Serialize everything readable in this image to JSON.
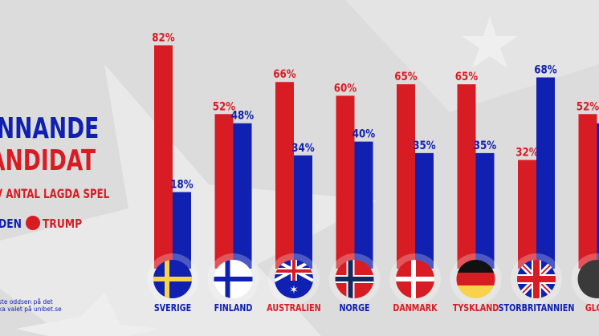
{
  "header": {
    "title_line1": "INNANDE",
    "title_line2": "ANDIDAT",
    "subtitle": "V ANTAL LAGDA SPEL"
  },
  "legend": [
    {
      "label": "DEN",
      "color": "#1020b0"
    },
    {
      "label": "TRUMP",
      "color": "#d81c24"
    }
  ],
  "footer": {
    "line1": "ste oddsen på det",
    "line2": "ka valet på unibet.se"
  },
  "colors": {
    "trump": "#d81c24",
    "biden": "#1020b0",
    "background": "#dcdcdc"
  },
  "chart_data": {
    "type": "bar",
    "categories": [
      "SVERIGE",
      "FINLAND",
      "AUSTRALIEN",
      "NORGE",
      "DANMARK",
      "TYSKLAND",
      "STORBRITANNIEN",
      "GLOB"
    ],
    "category_label_colors": [
      "#1020b0",
      "#1020b0",
      "#d81c24",
      "#1020b0",
      "#d81c24",
      "#d81c24",
      "#1020b0",
      "#d81c24"
    ],
    "flags": [
      "sweden",
      "finland",
      "australia",
      "norway",
      "denmark",
      "germany",
      "uk",
      "globe"
    ],
    "series": [
      {
        "name": "TRUMP",
        "color": "#d81c24",
        "values": [
          82,
          52,
          66,
          60,
          65,
          65,
          32,
          52
        ],
        "labels": [
          "82%",
          "52%",
          "66%",
          "60%",
          "65%",
          "65%",
          "32%",
          "52%"
        ]
      },
      {
        "name": "DEN",
        "color": "#1020b0",
        "values": [
          18,
          48,
          34,
          40,
          35,
          35,
          68,
          48
        ],
        "labels": [
          "18%",
          "48%",
          "34%",
          "40%",
          "35%",
          "35%",
          "68%",
          ""
        ]
      }
    ],
    "ylim": [
      0,
      100
    ],
    "grid": false
  }
}
